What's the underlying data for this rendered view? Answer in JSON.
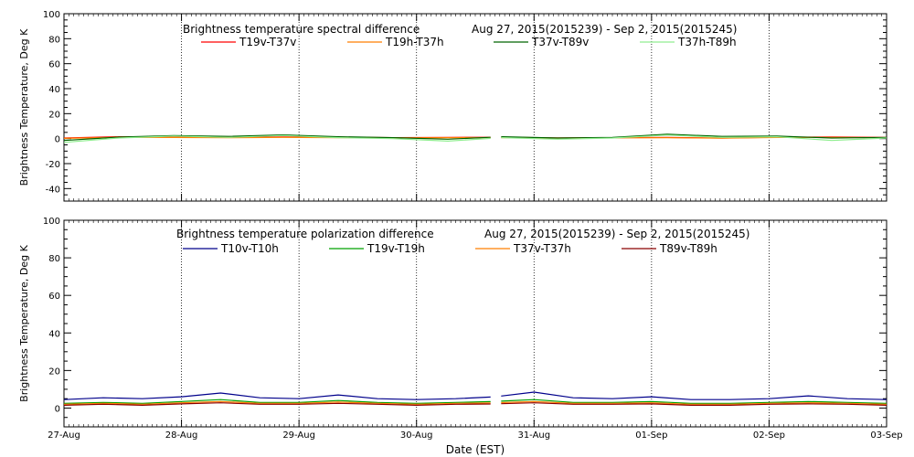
{
  "figure": {
    "xlabel": "Date (EST)"
  },
  "chart_data": [
    {
      "type": "line",
      "title": "Brightness temperature spectral difference",
      "date_range": "Aug 27, 2015(2015239) - Sep  2, 2015(2015245)",
      "ylabel": "Brightness Temperature, Deg K",
      "xlabel": "Date (EST)",
      "ylim": [
        -50,
        100
      ],
      "yticks": [
        -40,
        -20,
        0,
        20,
        40,
        60,
        80,
        100
      ],
      "x_tick_labels": [
        "27-Aug",
        "28-Aug",
        "29-Aug",
        "30-Aug",
        "31-Aug",
        "01-Sep",
        "02-Sep",
        "03-Sep"
      ],
      "xlim_days": [
        0,
        7
      ],
      "gap_days": [
        3.63,
        3.72
      ],
      "grid": "dotted vertical lines at each day",
      "legend": "top, inside plot",
      "series": [
        {
          "name": "T19v-T37v",
          "color": "#ff0000",
          "values": [
            0.5,
            1.5,
            1.2,
            1.0,
            1.3,
            1.2,
            0.8,
            1.0,
            1.1,
            0.6,
            0.8,
            0.9,
            0.5,
            1.1,
            1.3,
            1.0
          ]
        },
        {
          "name": "T19h-T37h",
          "color": "#ff7f00",
          "values": [
            0.2,
            1.0,
            0.9,
            0.7,
            1.0,
            0.8,
            0.5,
            0.8,
            0.7,
            0.3,
            0.6,
            0.7,
            0.4,
            0.9,
            1.0,
            0.8
          ]
        },
        {
          "name": "T37v-T89v",
          "color": "#006400",
          "values": [
            -1.5,
            1.2,
            2.5,
            1.8,
            3.0,
            1.5,
            0.8,
            -0.5,
            1.5,
            0.5,
            1.0,
            3.5,
            1.8,
            2.0,
            0.5,
            1.0
          ]
        },
        {
          "name": "T37h-T89h",
          "color": "#90ee90",
          "values": [
            -3.0,
            0.5,
            2.0,
            1.0,
            2.5,
            0.8,
            0.0,
            -2.0,
            0.8,
            -0.5,
            0.5,
            2.8,
            1.0,
            1.5,
            -1.5,
            0.5
          ]
        }
      ]
    },
    {
      "type": "line",
      "title": "Brightness temperature polarization difference",
      "date_range": "Aug 27, 2015(2015239) - Sep  2, 2015(2015245)",
      "ylabel": "Brightness Temperature, Deg K",
      "xlabel": "Date (EST)",
      "ylim": [
        -10,
        100
      ],
      "yticks": [
        0,
        20,
        40,
        60,
        80,
        100
      ],
      "x_tick_labels": [
        "27-Aug",
        "28-Aug",
        "29-Aug",
        "30-Aug",
        "31-Aug",
        "01-Sep",
        "02-Sep",
        "03-Sep"
      ],
      "xlim_days": [
        0,
        7
      ],
      "gap_days": [
        3.63,
        3.72
      ],
      "grid": "dotted vertical lines at each day",
      "legend": "top, inside plot",
      "series": [
        {
          "name": "T10v-T10h",
          "color": "#00008b",
          "values": [
            4.5,
            5.5,
            5.0,
            6.0,
            8.0,
            5.5,
            5.0,
            7.0,
            5.0,
            4.5,
            5.0,
            6.0,
            8.5,
            5.5,
            5.0,
            6.0,
            4.5,
            4.5,
            5.0,
            6.5,
            5.0,
            4.5
          ]
        },
        {
          "name": "T19v-T19h",
          "color": "#00a000",
          "values": [
            2.5,
            3.0,
            2.5,
            3.5,
            4.5,
            3.0,
            3.0,
            4.0,
            3.0,
            2.5,
            3.0,
            3.5,
            4.5,
            3.0,
            3.0,
            3.5,
            2.5,
            2.5,
            3.0,
            3.5,
            3.0,
            2.5
          ]
        },
        {
          "name": "T37v-T37h",
          "color": "#ff7f00",
          "values": [
            2.0,
            2.5,
            2.0,
            2.8,
            3.5,
            2.5,
            2.5,
            3.2,
            2.5,
            2.0,
            2.5,
            2.8,
            3.5,
            2.5,
            2.5,
            2.8,
            2.0,
            2.0,
            2.5,
            2.8,
            2.5,
            2.0
          ]
        },
        {
          "name": "T89v-T89h",
          "color": "#8b0000",
          "values": [
            1.5,
            2.0,
            1.5,
            2.2,
            2.8,
            2.0,
            2.0,
            2.5,
            2.0,
            1.5,
            2.0,
            2.2,
            2.8,
            2.0,
            2.0,
            2.2,
            1.5,
            1.5,
            2.0,
            2.2,
            2.0,
            1.5
          ]
        }
      ]
    }
  ]
}
